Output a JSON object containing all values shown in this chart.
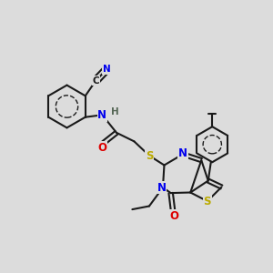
{
  "bg": "#dcdcdc",
  "bc": "#1a1a1a",
  "nc": "#0000ee",
  "oc": "#dd0000",
  "sc": "#bbaa00",
  "cc": "#1a1a1a",
  "hc": "#556655",
  "lw": 1.5,
  "lw_thin": 1.0,
  "fs": 8.5,
  "fs_sm": 7.5,
  "xlim": [
    0,
    10
  ],
  "ylim": [
    0,
    10
  ]
}
